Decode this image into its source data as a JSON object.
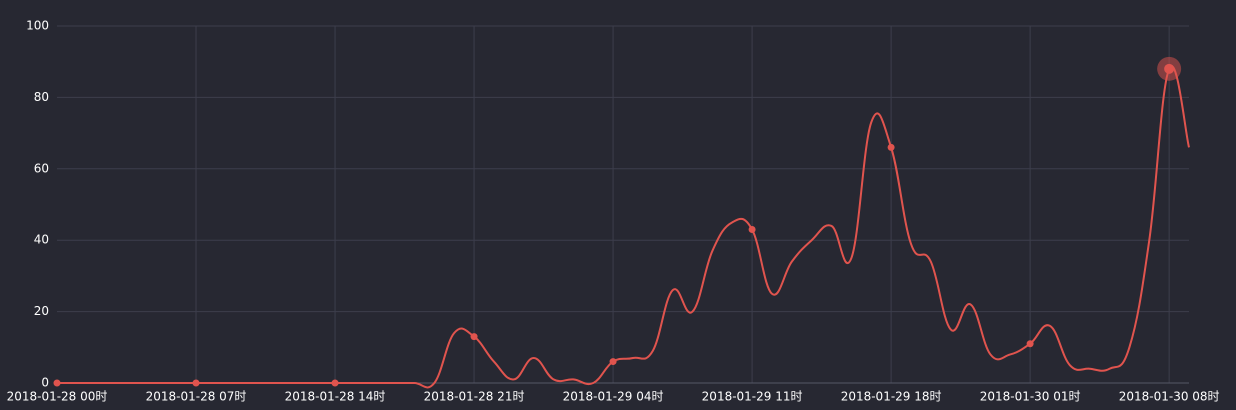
{
  "chart_data": {
    "type": "line",
    "categories": [
      "2018-01-28 00时",
      null,
      null,
      null,
      null,
      null,
      null,
      "2018-01-28 07时",
      null,
      null,
      null,
      null,
      null,
      null,
      "2018-01-28 14时",
      null,
      null,
      null,
      null,
      null,
      null,
      "2018-01-28 21时",
      null,
      null,
      null,
      null,
      null,
      null,
      "2018-01-29 04时",
      null,
      null,
      null,
      null,
      null,
      null,
      "2018-01-29 11时",
      null,
      null,
      null,
      null,
      null,
      null,
      "2018-01-29 18时",
      null,
      null,
      null,
      null,
      null,
      null,
      "2018-01-30 01时",
      null,
      null,
      null,
      null,
      null,
      null,
      "2018-01-30 08时",
      null
    ],
    "series": [
      {
        "color": "#e0544e",
        "values": [
          0,
          0,
          0,
          0,
          0,
          0,
          0,
          0,
          0,
          0,
          0,
          0,
          0,
          0,
          0,
          0,
          0,
          0,
          0,
          0,
          14,
          13,
          6,
          1,
          7,
          1,
          1,
          0,
          6,
          7,
          9,
          26,
          20,
          37,
          45,
          43,
          25,
          34,
          40,
          44,
          35,
          73,
          66,
          39,
          34,
          15,
          22,
          8,
          8,
          11,
          16,
          5,
          4,
          4,
          10,
          40,
          88,
          66
        ]
      }
    ],
    "ylim": [
      0,
      100
    ],
    "yticks": [
      0,
      20,
      40,
      60,
      80,
      100
    ],
    "grid": true
  }
}
